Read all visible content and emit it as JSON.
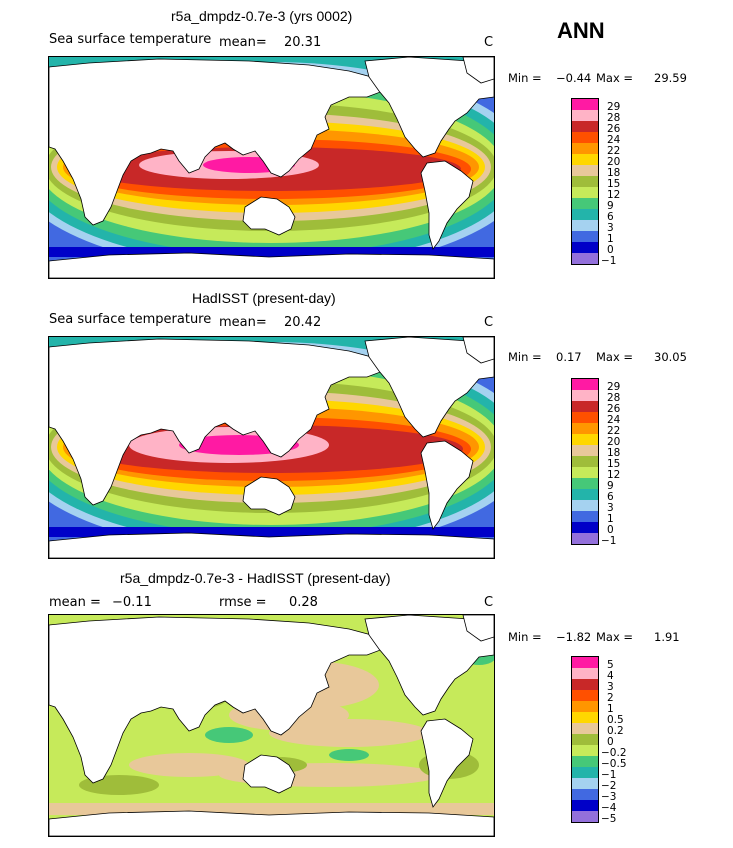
{
  "season": "ANN",
  "panels": [
    {
      "title": "r5a_dmpdz-0.7e-3 (yrs 0002)",
      "variable": "Sea surface temperature",
      "stat_left": "mean=",
      "stat_left_value": "20.31",
      "stat_right": "",
      "stat_right_value": "",
      "units": "C",
      "min_label": "Min =",
      "min_value": "−0.44",
      "max_label": "Max =",
      "max_value": "29.59",
      "kind": "abs"
    },
    {
      "title": "HadISST (present-day)",
      "variable": "Sea surface temperature",
      "stat_left": "mean=",
      "stat_left_value": "20.42",
      "stat_right": "",
      "stat_right_value": "",
      "units": "C",
      "min_label": "Min =",
      "min_value": "0.17",
      "max_label": "Max =",
      "max_value": "30.05",
      "kind": "abs"
    },
    {
      "title": "r5a_dmpdz-0.7e-3 - HadISST (present-day)",
      "variable": "",
      "stat_left": "mean =",
      "stat_left_value": "−0.11",
      "stat_right": "rmse =",
      "stat_right_value": "0.28",
      "units": "C",
      "min_label": "Min =",
      "min_value": "−1.82",
      "max_label": "Max =",
      "max_value": "1.91",
      "kind": "diff"
    }
  ],
  "colorbars": {
    "abs": {
      "labels": [
        "29",
        "28",
        "26",
        "24",
        "22",
        "20",
        "18",
        "15",
        "12",
        "9",
        "6",
        "3",
        "1",
        "0",
        "−1"
      ],
      "colors": [
        "#ff1aa3",
        "#ffb3c6",
        "#c82828",
        "#ff5000",
        "#ff9600",
        "#ffd700",
        "#e8c89a",
        "#9fbd3a",
        "#c6ea5a",
        "#46c878",
        "#23b4aa",
        "#a5d2f0",
        "#4169e1",
        "#0000c8",
        "#9370db"
      ]
    },
    "diff": {
      "labels": [
        "5",
        "4",
        "3",
        "2",
        "1",
        "0.5",
        "0.2",
        "0",
        "−0.2",
        "−0.5",
        "−1",
        "−2",
        "−3",
        "−4",
        "−5"
      ],
      "colors": [
        "#ff1aa3",
        "#ffb3c6",
        "#c82828",
        "#ff5000",
        "#ff9600",
        "#ffd700",
        "#e8c89a",
        "#9fbd3a",
        "#c6ea5a",
        "#46c878",
        "#23b4aa",
        "#a5d2f0",
        "#4169e1",
        "#0000c8",
        "#9370db"
      ]
    }
  }
}
